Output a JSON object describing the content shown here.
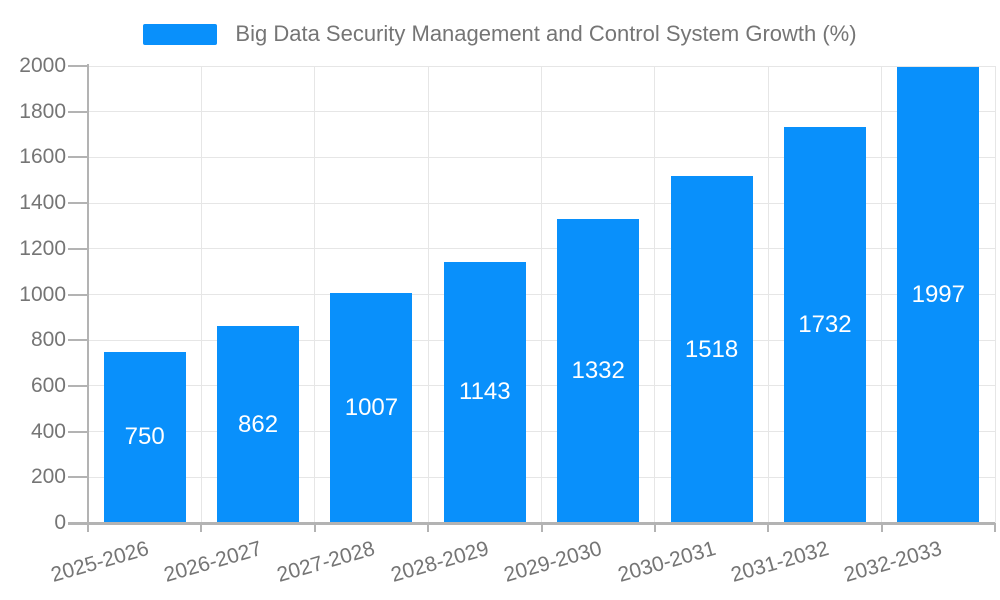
{
  "legend": {
    "label": "Big Data Security Management and Control System Growth (%)"
  },
  "chart_data": {
    "type": "bar",
    "title": "",
    "xlabel": "",
    "ylabel": "",
    "categories": [
      "2025-2026",
      "2026-2027",
      "2027-2028",
      "2028-2029",
      "2029-2030",
      "2030-2031",
      "2031-2032",
      "2032-2033"
    ],
    "values": [
      750,
      862,
      1007,
      1143,
      1332,
      1518,
      1732,
      1997
    ],
    "series_name": "Big Data Security Management and Control System Growth (%)",
    "value_labels": [
      "750",
      "862",
      "1007",
      "1143",
      "1332",
      "1518",
      "1732",
      "1997"
    ],
    "ylim": [
      0,
      2000
    ],
    "yticks": [
      0,
      200,
      400,
      600,
      800,
      1000,
      1200,
      1400,
      1600,
      1800,
      2000
    ],
    "grid": true,
    "legend_position": "top",
    "value_label_position": "inside-center",
    "xtick_rotation_deg": -16
  },
  "colors": {
    "bar": "#0990fb",
    "axis": "#b3b3b3",
    "grid": "#e6e6e6",
    "tick_text": "#757575",
    "value_text": "#ffffff",
    "legend_text": "#757575",
    "background": "#ffffff"
  }
}
